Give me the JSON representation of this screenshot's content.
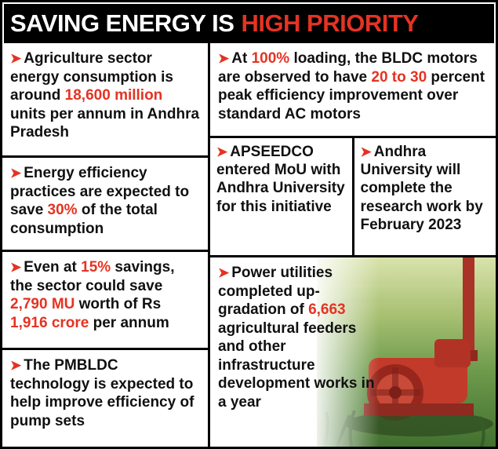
{
  "header": {
    "title_white": "SAVING ENERGY IS",
    "title_red": "HIGH PRIORITY"
  },
  "icons": {
    "bullet": "➤",
    "photo": "agricultural-pump-set-photo"
  },
  "colors": {
    "accent_red": "#e53322",
    "header_bg": "#000000",
    "border": "#000000"
  },
  "cells": {
    "agriculture_consumption": {
      "segments": [
        {
          "t": "Agriculture sector energy consumption is around ",
          "hl": false
        },
        {
          "t": "18,600 million",
          "hl": true
        },
        {
          "t": " units per annum in Andhra Pradesh",
          "hl": false
        }
      ]
    },
    "efficiency_savings": {
      "segments": [
        {
          "t": "Energy efficiency practices are expected to save ",
          "hl": false
        },
        {
          "t": "30%",
          "hl": true
        },
        {
          "t": " of the total consumption",
          "hl": false
        }
      ]
    },
    "fifteen_percent_savings": {
      "segments": [
        {
          "t": "Even at ",
          "hl": false
        },
        {
          "t": "15%",
          "hl": true
        },
        {
          "t": " savings, the sector could save ",
          "hl": false
        },
        {
          "t": "2,790 MU",
          "hl": true
        },
        {
          "t": " worth of Rs ",
          "hl": false
        },
        {
          "t": "1,916 crore",
          "hl": true
        },
        {
          "t": " per annum",
          "hl": false
        }
      ]
    },
    "pmbldc_technology": {
      "segments": [
        {
          "t": "The PMBLDC technology is expected to help improve efficiency of pump sets",
          "hl": false
        }
      ]
    },
    "bldc_motors": {
      "segments": [
        {
          "t": "At ",
          "hl": false
        },
        {
          "t": "100%",
          "hl": true
        },
        {
          "t": " loading, the BLDC motors are observed to have ",
          "hl": false
        },
        {
          "t": "20 to 30",
          "hl": true
        },
        {
          "t": " percent peak efficiency improvement over standard AC motors",
          "hl": false
        }
      ]
    },
    "apseedco_mou": {
      "segments": [
        {
          "t": "APSEEDCO entered MoU with Andhra University for this initiative",
          "hl": false
        }
      ]
    },
    "andhra_university_research": {
      "segments": [
        {
          "t": "Andhra University will complete the research work by February 2023",
          "hl": false
        }
      ]
    },
    "power_utilities": {
      "segments": [
        {
          "t": "Power utilities completed up-gradation of ",
          "hl": false
        },
        {
          "t": "6,663",
          "hl": true
        },
        {
          "t": " agricultural feeders and other infrastructure development works in a year",
          "hl": false
        }
      ]
    }
  }
}
